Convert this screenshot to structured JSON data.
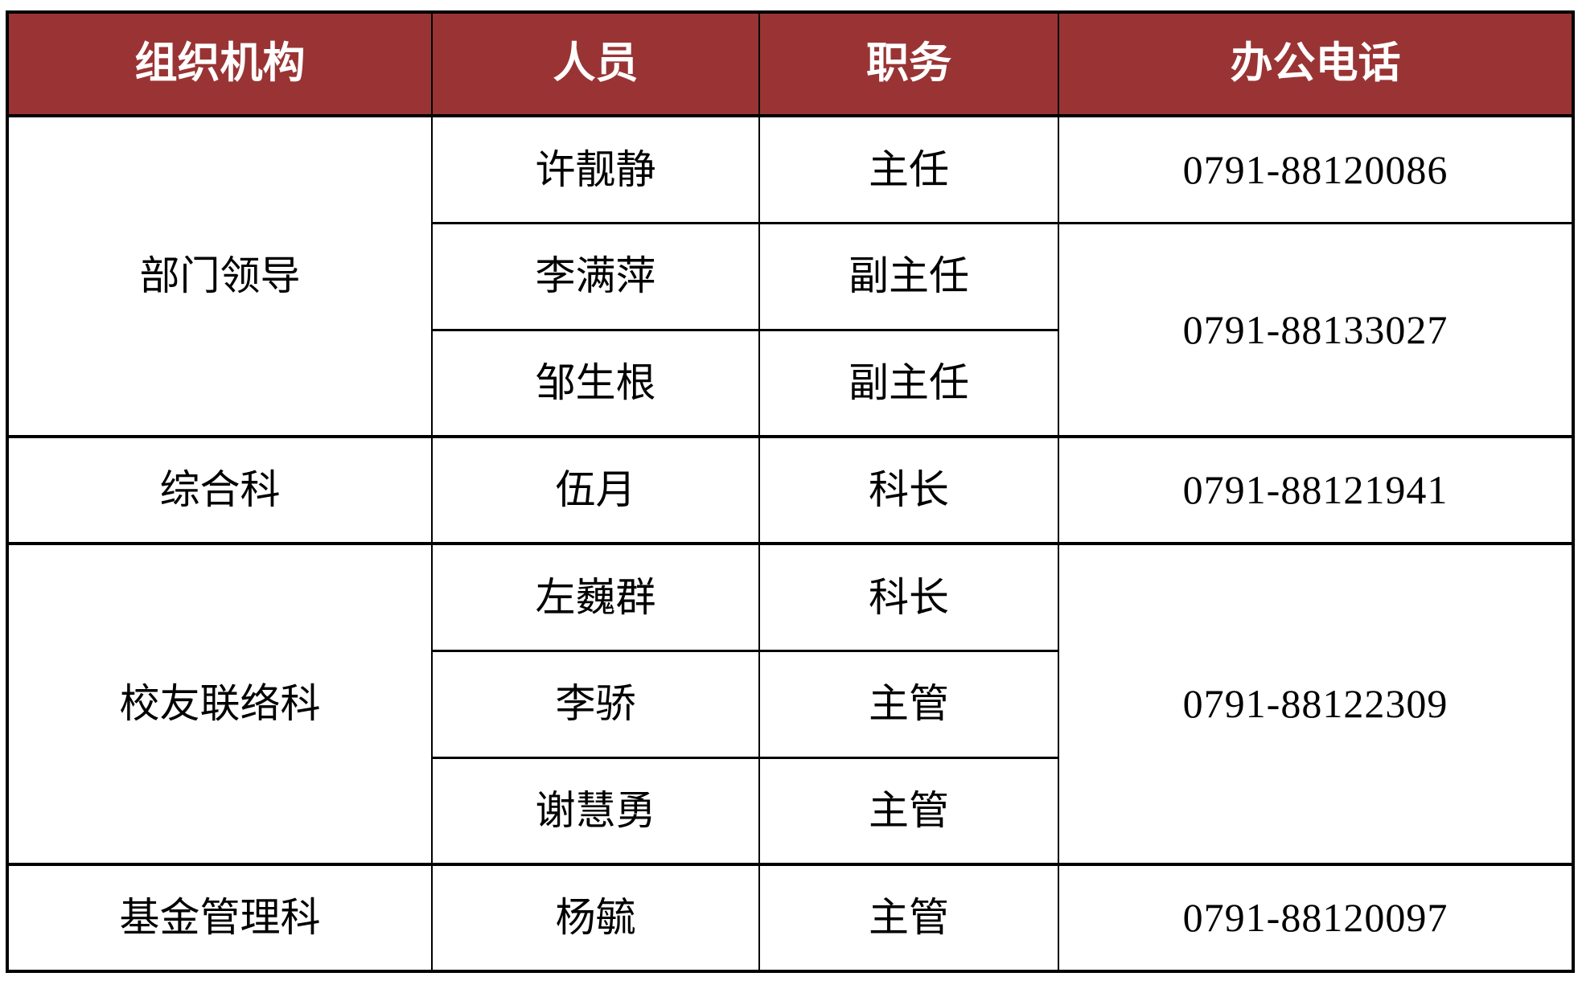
{
  "page": {
    "background_color": "#ffffff",
    "header_background_color": "#9a3434",
    "header_text_color": "#ffffff",
    "border_color": "#000000"
  },
  "table": {
    "headers": [
      "组织机构",
      "人员",
      "职务",
      "办公电话"
    ],
    "rows": [
      {
        "org": "部门领导",
        "name": "许靓静",
        "title": "主任",
        "phone": "0791-88120086"
      },
      {
        "name": "李满萍",
        "title": "副主任",
        "phone": "0791-88133027"
      },
      {
        "name": "邹生根",
        "title": "副主任"
      },
      {
        "org": "综合科",
        "name": "伍月",
        "title": "科长",
        "phone": "0791-88121941"
      },
      {
        "org": "校友联络科",
        "name": "左巍群",
        "title": "科长",
        "phone": "0791-88122309"
      },
      {
        "name": "李骄",
        "title": "主管"
      },
      {
        "name": "谢慧勇",
        "title": "主管"
      },
      {
        "org": "基金管理科",
        "name": "杨毓",
        "title": "主管",
        "phone": "0791-88120097"
      }
    ]
  }
}
